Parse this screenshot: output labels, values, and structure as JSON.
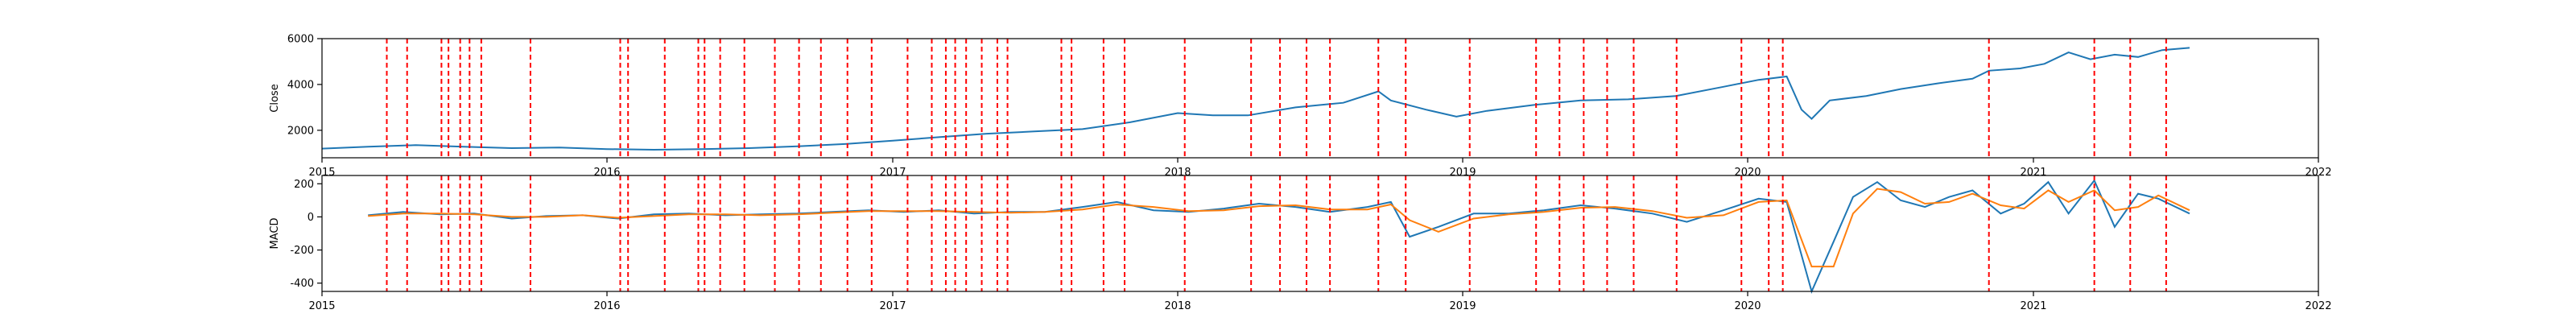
{
  "chart_data": [
    {
      "type": "line",
      "ylabel": "Close",
      "xlim": [
        "2015-01-01",
        "2022-01-01"
      ],
      "ylim": [
        800,
        6000
      ],
      "x_ticks": [
        "2015",
        "2016",
        "2017",
        "2018",
        "2019",
        "2020",
        "2021",
        "2022"
      ],
      "y_ticks": [
        2000,
        4000,
        6000
      ],
      "grid": false,
      "colors": {
        "series": "#1f77b4",
        "vlines": "#ff0000"
      },
      "series": [
        {
          "x": [
            "2015-01-01",
            "2015-03-01",
            "2015-05-01",
            "2015-07-01",
            "2015-09-01",
            "2015-11-01",
            "2016-01-01",
            "2016-03-01",
            "2016-05-01",
            "2016-07-01",
            "2016-09-01",
            "2016-11-01",
            "2017-01-01",
            "2017-03-01",
            "2017-05-01",
            "2017-07-01",
            "2017-09-01",
            "2017-11-01",
            "2018-01-01",
            "2018-02-15",
            "2018-04-01",
            "2018-06-01",
            "2018-08-01",
            "2018-09-15",
            "2018-10-01",
            "2018-11-15",
            "2018-12-24",
            "2019-02-01",
            "2019-04-01",
            "2019-06-01",
            "2019-08-01",
            "2019-10-01",
            "2019-12-01",
            "2020-01-15",
            "2020-02-20",
            "2020-03-10",
            "2020-03-23",
            "2020-04-15",
            "2020-06-01",
            "2020-07-15",
            "2020-09-01",
            "2020-10-15",
            "2020-11-05",
            "2020-12-15",
            "2021-01-15",
            "2021-02-15",
            "2021-03-15",
            "2021-04-15",
            "2021-05-15",
            "2021-06-15",
            "2021-07-20"
          ],
          "y": [
            1200,
            1280,
            1350,
            1280,
            1220,
            1250,
            1180,
            1150,
            1180,
            1220,
            1300,
            1400,
            1550,
            1700,
            1850,
            1950,
            2050,
            2350,
            2750,
            2650,
            2650,
            3000,
            3200,
            3700,
            3300,
            2900,
            2600,
            2850,
            3100,
            3300,
            3350,
            3500,
            3900,
            4200,
            4350,
            2900,
            2500,
            3300,
            3500,
            3800,
            4050,
            4250,
            4600,
            4700,
            4900,
            5400,
            5100,
            5300,
            5200,
            5500,
            5600
          ]
        }
      ]
    },
    {
      "type": "line",
      "ylabel": "MACD",
      "xlim": [
        "2015-01-01",
        "2022-01-01"
      ],
      "ylim": [
        -450,
        250
      ],
      "x_ticks": [
        "2015",
        "2016",
        "2017",
        "2018",
        "2019",
        "2020",
        "2021",
        "2022"
      ],
      "y_ticks": [
        -400,
        -200,
        0,
        200
      ],
      "grid": false,
      "colors": {
        "macd": "#1f77b4",
        "signal": "#ff7f0e",
        "vlines": "#ff0000"
      },
      "series": [
        {
          "x": [
            "2015-03-01",
            "2015-04-15",
            "2015-06-01",
            "2015-07-15",
            "2015-09-01",
            "2015-10-15",
            "2015-12-01",
            "2016-01-15",
            "2016-03-01",
            "2016-04-15",
            "2016-06-01",
            "2016-07-15",
            "2016-09-01",
            "2016-10-15",
            "2016-12-01",
            "2017-01-15",
            "2017-03-01",
            "2017-04-15",
            "2017-06-01",
            "2017-07-15",
            "2017-09-01",
            "2017-10-15",
            "2017-12-01",
            "2018-01-15",
            "2018-03-01",
            "2018-04-15",
            "2018-06-01",
            "2018-07-15",
            "2018-09-01",
            "2018-10-01",
            "2018-10-25",
            "2018-12-01",
            "2019-01-15",
            "2019-03-01",
            "2019-04-15",
            "2019-06-01",
            "2019-07-15",
            "2019-09-01",
            "2019-10-15",
            "2019-12-01",
            "2020-01-15",
            "2020-02-20",
            "2020-03-23",
            "2020-04-20",
            "2020-05-15",
            "2020-06-15",
            "2020-07-15",
            "2020-08-15",
            "2020-09-15",
            "2020-10-15",
            "2020-11-20",
            "2020-12-20",
            "2021-01-20",
            "2021-02-15",
            "2021-03-20",
            "2021-04-15",
            "2021-05-15",
            "2021-06-10",
            "2021-07-20"
          ],
          "y": [
            10,
            30,
            15,
            20,
            -10,
            5,
            10,
            -10,
            15,
            20,
            10,
            15,
            20,
            30,
            40,
            30,
            40,
            20,
            30,
            30,
            60,
            90,
            40,
            30,
            50,
            80,
            60,
            30,
            60,
            90,
            -120,
            -60,
            20,
            20,
            40,
            70,
            50,
            20,
            -30,
            40,
            110,
            90,
            -450,
            -150,
            120,
            210,
            100,
            60,
            120,
            160,
            20,
            80,
            210,
            20,
            220,
            -60,
            140,
            110,
            20
          ],
          "name": ""
        },
        {
          "x": [
            "2015-03-01",
            "2015-04-15",
            "2015-06-01",
            "2015-07-15",
            "2015-09-01",
            "2015-10-15",
            "2015-12-01",
            "2016-01-15",
            "2016-03-01",
            "2016-04-15",
            "2016-06-01",
            "2016-07-15",
            "2016-09-01",
            "2016-10-15",
            "2016-12-01",
            "2017-01-15",
            "2017-03-01",
            "2017-04-15",
            "2017-06-01",
            "2017-07-15",
            "2017-09-01",
            "2017-10-15",
            "2017-12-01",
            "2018-01-15",
            "2018-03-01",
            "2018-04-15",
            "2018-06-01",
            "2018-07-15",
            "2018-09-01",
            "2018-10-01",
            "2018-10-25",
            "2018-12-01",
            "2019-01-15",
            "2019-03-01",
            "2019-04-15",
            "2019-06-01",
            "2019-07-15",
            "2019-09-01",
            "2019-10-15",
            "2019-12-01",
            "2020-01-15",
            "2020-02-20",
            "2020-03-23",
            "2020-04-20",
            "2020-05-15",
            "2020-06-15",
            "2020-07-15",
            "2020-08-15",
            "2020-09-15",
            "2020-10-15",
            "2020-11-20",
            "2020-12-20",
            "2021-01-20",
            "2021-02-15",
            "2021-03-20",
            "2021-04-15",
            "2021-05-15",
            "2021-06-10",
            "2021-07-20"
          ],
          "y": [
            5,
            20,
            20,
            15,
            0,
            0,
            10,
            -5,
            5,
            15,
            15,
            10,
            15,
            25,
            35,
            35,
            35,
            30,
            25,
            30,
            45,
            75,
            60,
            35,
            40,
            65,
            70,
            45,
            45,
            75,
            -20,
            -90,
            -10,
            15,
            30,
            55,
            60,
            35,
            -5,
            10,
            90,
            100,
            -300,
            -300,
            20,
            170,
            150,
            80,
            90,
            140,
            70,
            50,
            160,
            90,
            160,
            40,
            60,
            130,
            40
          ],
          "name": ""
        }
      ]
    }
  ],
  "vlines": [
    "2015-03-25",
    "2015-04-20",
    "2015-06-03",
    "2015-06-12",
    "2015-06-27",
    "2015-07-09",
    "2015-07-24",
    "2015-09-25",
    "2016-01-18",
    "2016-01-28",
    "2016-03-15",
    "2016-04-27",
    "2016-05-05",
    "2016-05-25",
    "2016-06-25",
    "2016-08-03",
    "2016-09-03",
    "2016-10-01",
    "2016-11-04",
    "2016-12-05",
    "2017-01-20",
    "2017-02-20",
    "2017-03-10",
    "2017-03-22",
    "2017-04-05",
    "2017-04-25",
    "2017-05-15",
    "2017-05-28",
    "2017-08-05",
    "2017-08-18",
    "2017-09-28",
    "2017-10-25",
    "2018-01-10",
    "2018-04-05",
    "2018-05-12",
    "2018-06-15",
    "2018-07-15",
    "2018-09-15",
    "2018-10-20",
    "2019-01-10",
    "2019-04-05",
    "2019-05-05",
    "2019-06-05",
    "2019-07-05",
    "2019-08-08",
    "2019-10-02",
    "2019-12-24",
    "2020-01-28",
    "2020-02-15",
    "2020-11-05",
    "2021-03-20",
    "2021-05-05",
    "2021-06-20"
  ]
}
